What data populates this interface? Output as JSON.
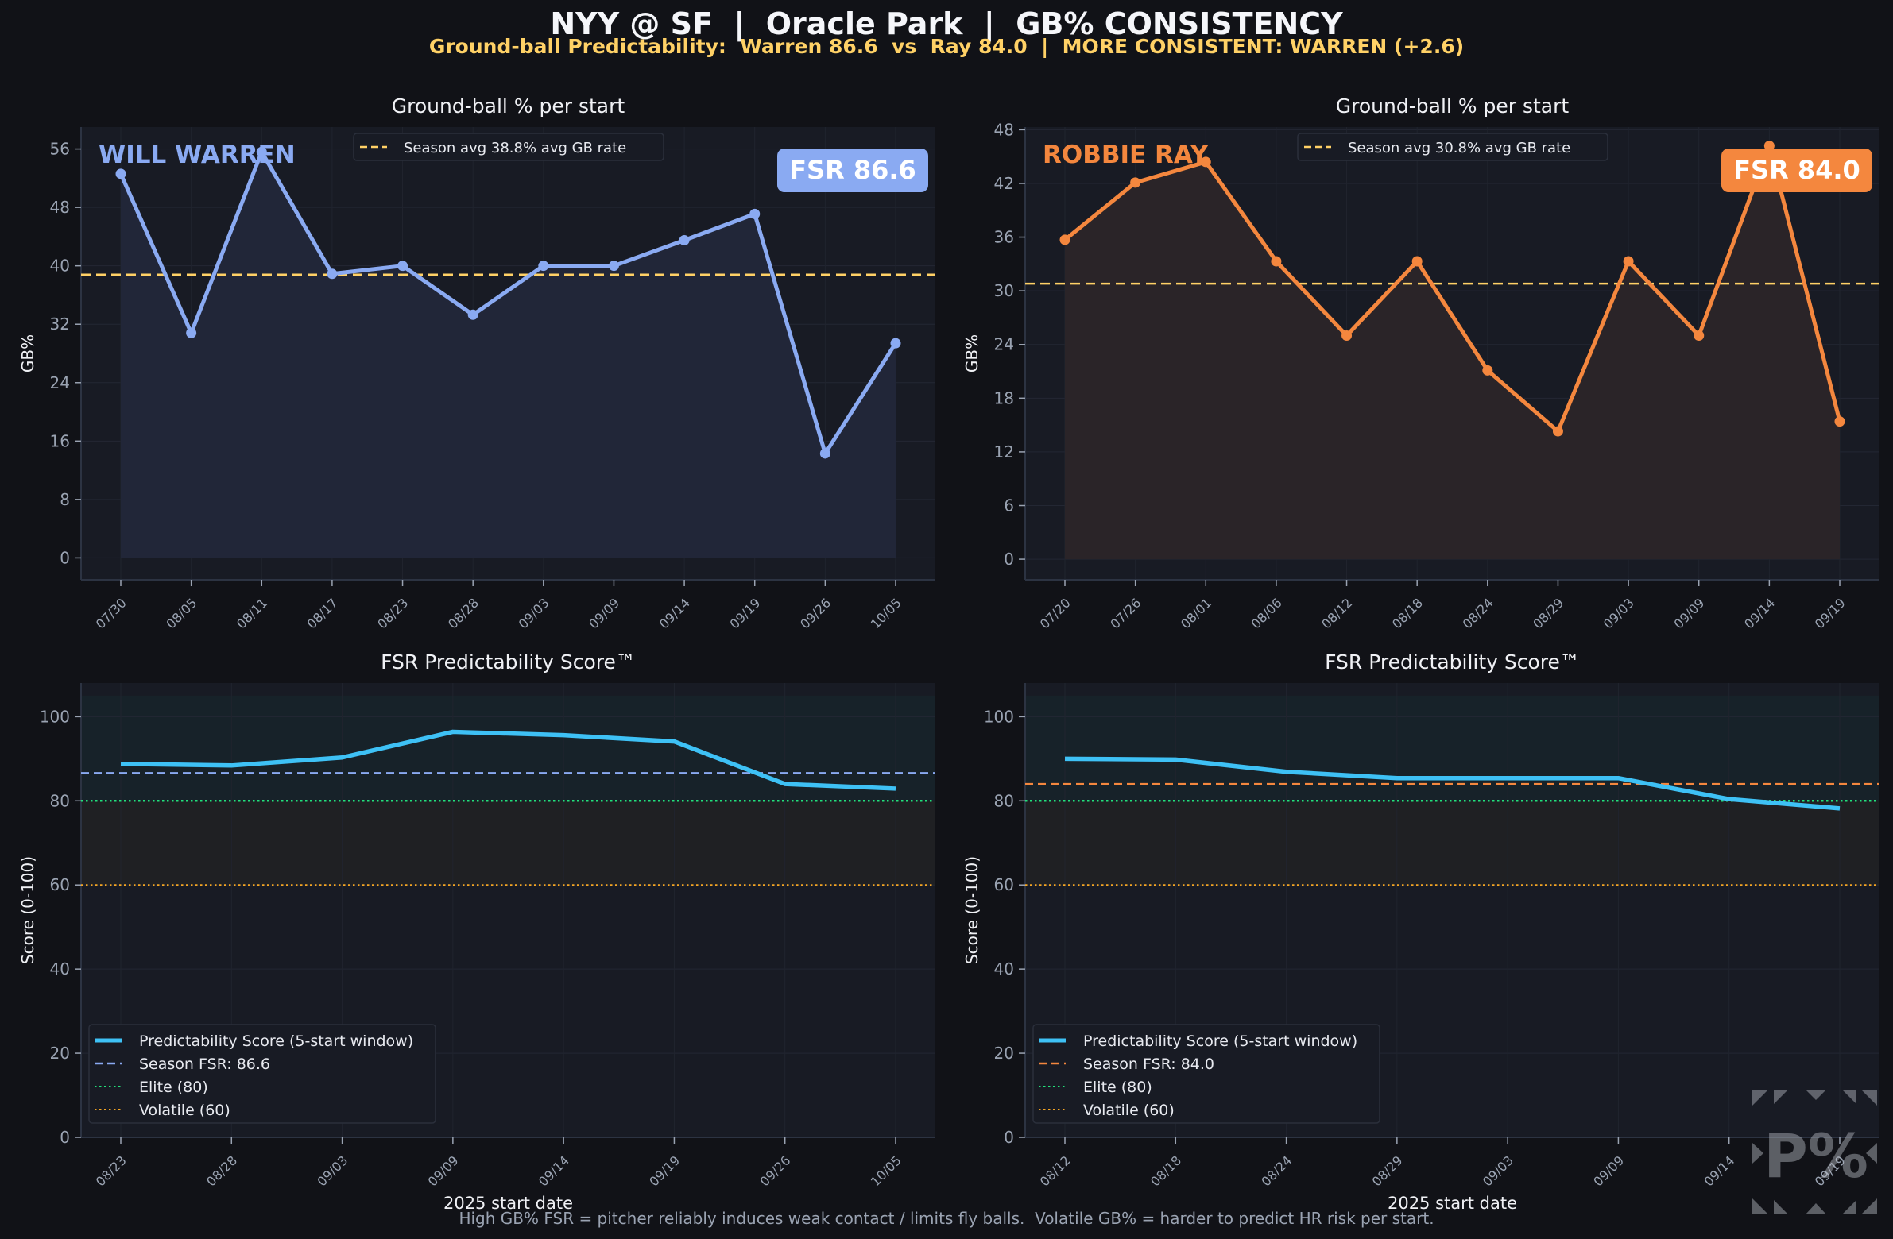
{
  "header": {
    "title": "NYY @ SF  |  Oracle Park  |  GB% CONSISTENCY",
    "subtitle": "Ground-ball Predictability:  Warren 86.6  vs  Ray 84.0  |  MORE CONSISTENT: WARREN (+2.6)"
  },
  "footnote": "High GB% FSR = pitcher reliably induces weak contact / limits fly balls.  Volatile GB% = harder to predict HR risk per start.",
  "watermark": {
    "text": "P%",
    "icon": "corner-arrows-logo-icon"
  },
  "colors": {
    "warren": "#8aaaf2",
    "ray": "#f4873e",
    "season_avg": "#ffd166",
    "score_line": "#3ec1f5",
    "elite": "#22e07a",
    "volatile": "#f5a623",
    "background": "#111217",
    "panel": "#181b24"
  },
  "chart_data": [
    {
      "id": "warren-gb",
      "type": "line",
      "title": "Ground-ball % per start",
      "player": "WILL WARREN",
      "badge": "FSR 86.6",
      "ylabel": "GB%",
      "xlabel": "",
      "ylim": [
        -3,
        59
      ],
      "yticks": [
        0,
        8,
        16,
        24,
        32,
        40,
        48,
        56
      ],
      "grid": true,
      "legend_position": "top-center",
      "categories": [
        "07/30",
        "08/05",
        "08/11",
        "08/17",
        "08/23",
        "08/28",
        "09/03",
        "09/09",
        "09/14",
        "09/19",
        "09/26",
        "10/05"
      ],
      "series": [
        {
          "name": "GB%",
          "values": [
            52.6,
            30.8,
            55.6,
            38.9,
            40.0,
            33.3,
            40.0,
            40.0,
            43.5,
            47.1,
            14.3,
            29.4
          ]
        }
      ],
      "reference_line": {
        "label": "Season avg  38.8% avg GB rate",
        "value": 38.8
      }
    },
    {
      "id": "ray-gb",
      "type": "line",
      "title": "Ground-ball % per start",
      "player": "ROBBIE RAY",
      "badge": "FSR 84.0",
      "ylabel": "GB%",
      "xlabel": "",
      "ylim": [
        -2.3,
        48.3
      ],
      "yticks": [
        0,
        6,
        12,
        18,
        24,
        30,
        36,
        42,
        48
      ],
      "grid": true,
      "legend_position": "top-center",
      "categories": [
        "07/20",
        "07/26",
        "08/01",
        "08/06",
        "08/12",
        "08/18",
        "08/24",
        "08/29",
        "09/03",
        "09/09",
        "09/14",
        "09/19"
      ],
      "series": [
        {
          "name": "GB%",
          "values": [
            35.7,
            42.1,
            44.4,
            33.3,
            25.0,
            33.3,
            21.1,
            14.3,
            33.3,
            25.0,
            46.2,
            15.4
          ]
        }
      ],
      "reference_line": {
        "label": "Season avg  30.8% avg GB rate",
        "value": 30.8
      }
    },
    {
      "id": "warren-fsr",
      "type": "line",
      "title": "FSR Predictability Score™",
      "ylabel": "Score (0-100)",
      "xlabel": "2025 start date",
      "ylim": [
        0,
        108
      ],
      "yticks": [
        0,
        20,
        40,
        60,
        80,
        100
      ],
      "grid": true,
      "legend_position": "bottom-left",
      "categories": [
        "08/23",
        "08/28",
        "09/03",
        "09/09",
        "09/14",
        "09/19",
        "09/26",
        "10/05"
      ],
      "series": [
        {
          "name": "Predictability Score (5-start window)",
          "values": [
            88.8,
            88.4,
            90.3,
            96.4,
            95.6,
            94.1,
            84.0,
            82.9
          ]
        }
      ],
      "reference_lines": [
        {
          "label": "Season FSR: 86.6",
          "value": 86.6,
          "style": "dashed"
        },
        {
          "label": "Elite  (80)",
          "value": 80,
          "style": "dotted"
        },
        {
          "label": "Volatile (60)",
          "value": 60,
          "style": "dotted"
        }
      ]
    },
    {
      "id": "ray-fsr",
      "type": "line",
      "title": "FSR Predictability Score™",
      "ylabel": "Score (0-100)",
      "xlabel": "2025 start date",
      "ylim": [
        0,
        108
      ],
      "yticks": [
        0,
        20,
        40,
        60,
        80,
        100
      ],
      "grid": true,
      "legend_position": "bottom-left",
      "categories": [
        "08/12",
        "08/18",
        "08/24",
        "08/29",
        "09/03",
        "09/09",
        "09/14",
        "09/19"
      ],
      "series": [
        {
          "name": "Predictability Score (5-start window)",
          "values": [
            90.0,
            89.8,
            86.9,
            85.4,
            85.4,
            85.4,
            80.4,
            78.2
          ]
        }
      ],
      "reference_lines": [
        {
          "label": "Season FSR: 84.0",
          "value": 84.0,
          "style": "dashed"
        },
        {
          "label": "Elite  (80)",
          "value": 80,
          "style": "dotted"
        },
        {
          "label": "Volatile (60)",
          "value": 60,
          "style": "dotted"
        }
      ]
    }
  ]
}
